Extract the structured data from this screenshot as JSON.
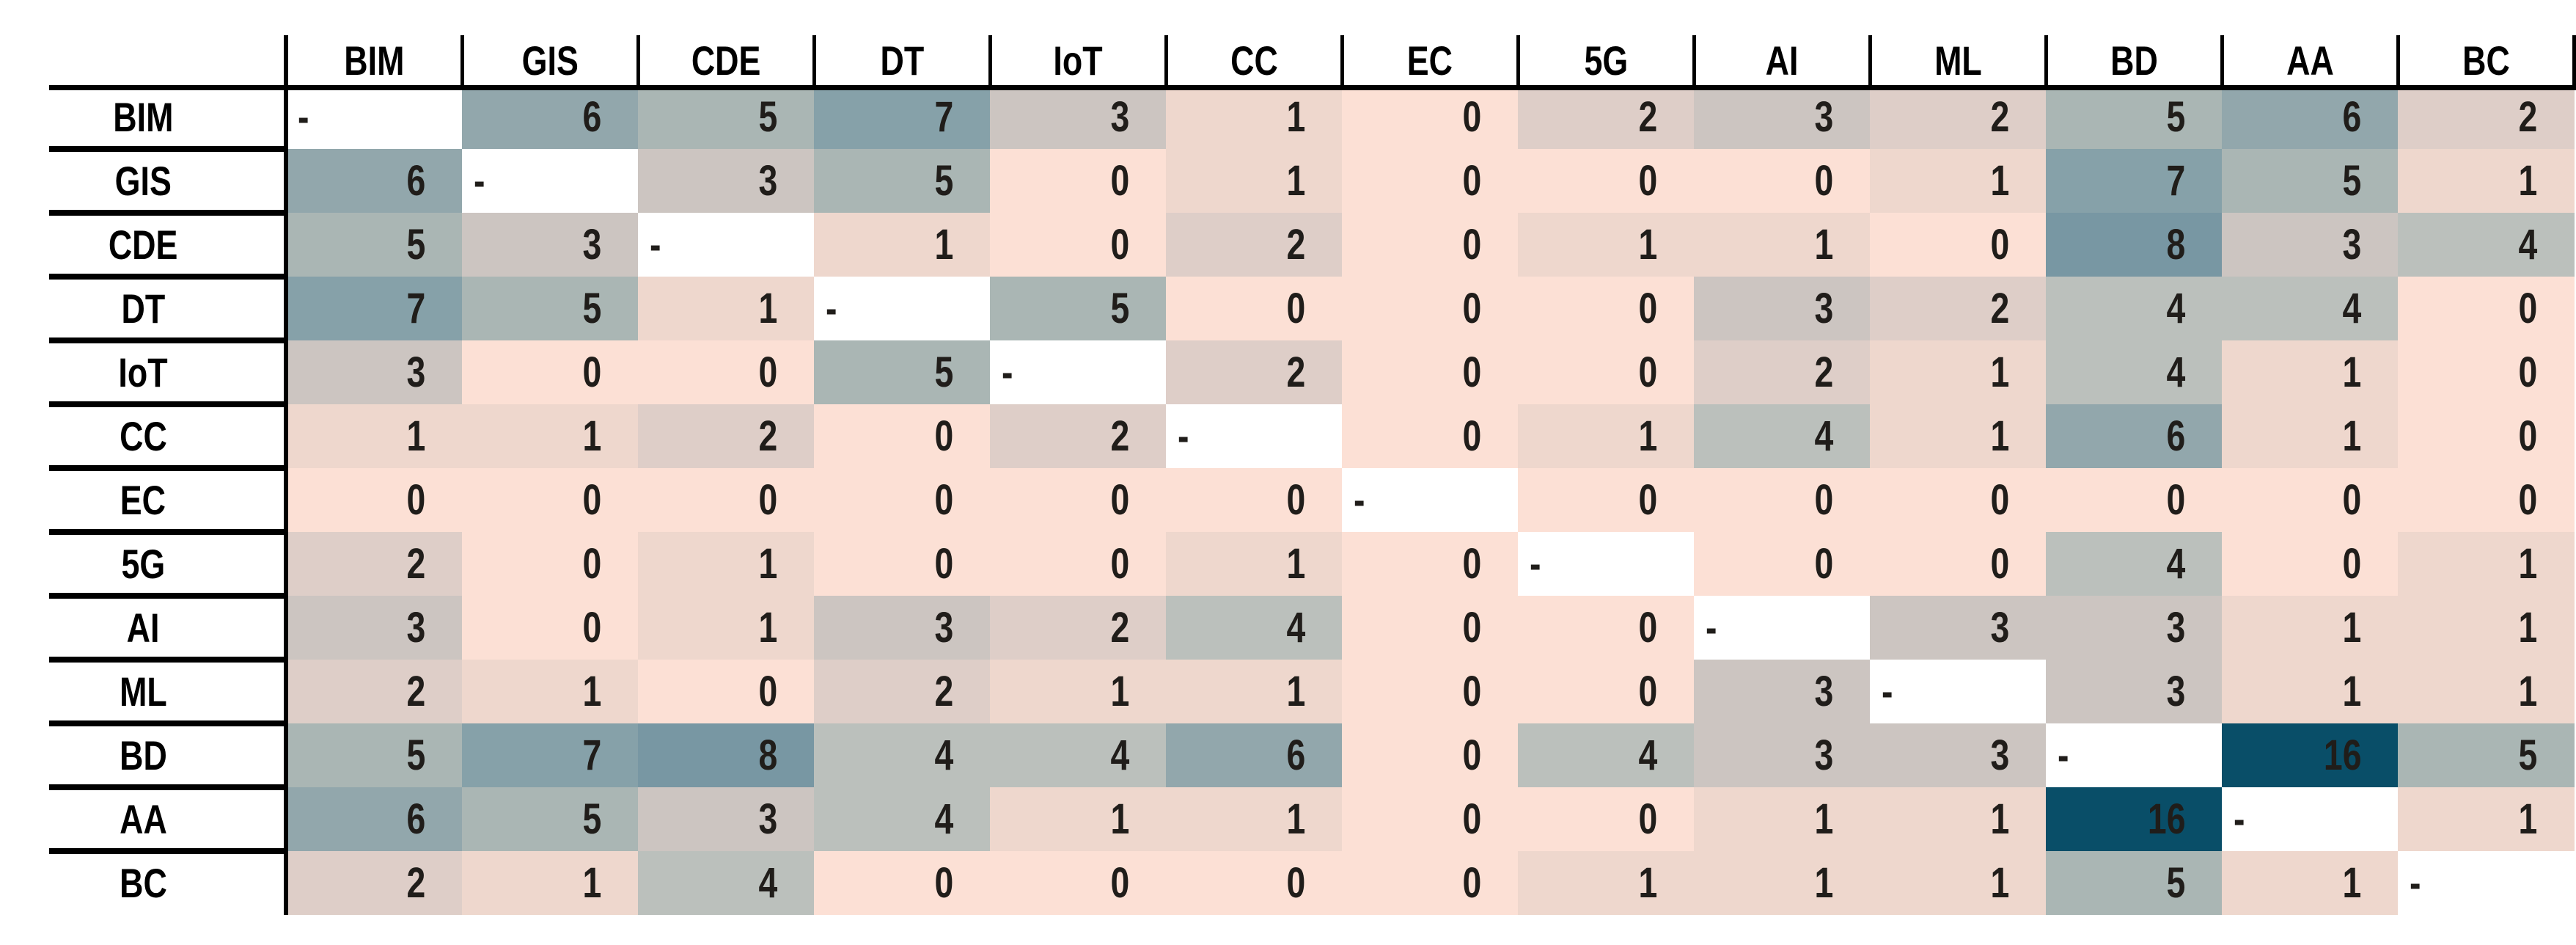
{
  "chart_data": {
    "type": "heatmap",
    "description": "Symmetric co-occurrence matrix of technology acronyms",
    "labels": [
      "BIM",
      "GIS",
      "CDE",
      "DT",
      "IoT",
      "CC",
      "EC",
      "5G",
      "AI",
      "ML",
      "BD",
      "AA",
      "BC"
    ],
    "matrix": [
      [
        null,
        6,
        5,
        7,
        3,
        1,
        0,
        2,
        3,
        2,
        5,
        6,
        2
      ],
      [
        6,
        null,
        3,
        5,
        0,
        1,
        0,
        0,
        0,
        1,
        7,
        5,
        1
      ],
      [
        5,
        3,
        null,
        1,
        0,
        2,
        0,
        1,
        1,
        0,
        8,
        3,
        4
      ],
      [
        7,
        5,
        1,
        null,
        5,
        0,
        0,
        0,
        3,
        2,
        4,
        4,
        0
      ],
      [
        3,
        0,
        0,
        5,
        null,
        2,
        0,
        0,
        2,
        1,
        4,
        1,
        0
      ],
      [
        1,
        1,
        2,
        0,
        2,
        null,
        0,
        1,
        4,
        1,
        6,
        1,
        0
      ],
      [
        0,
        0,
        0,
        0,
        0,
        0,
        null,
        0,
        0,
        0,
        0,
        0,
        0
      ],
      [
        2,
        0,
        1,
        0,
        0,
        1,
        0,
        null,
        0,
        0,
        4,
        0,
        1
      ],
      [
        3,
        0,
        1,
        3,
        2,
        4,
        0,
        0,
        null,
        3,
        3,
        1,
        1
      ],
      [
        2,
        1,
        0,
        2,
        1,
        1,
        0,
        0,
        3,
        null,
        3,
        1,
        1
      ],
      [
        5,
        7,
        8,
        4,
        4,
        6,
        0,
        4,
        3,
        3,
        null,
        16,
        5
      ],
      [
        6,
        5,
        3,
        4,
        1,
        1,
        0,
        0,
        1,
        1,
        16,
        null,
        1
      ],
      [
        2,
        1,
        4,
        0,
        0,
        0,
        0,
        1,
        1,
        1,
        5,
        1,
        null
      ]
    ],
    "diagonal_char": "-",
    "diagonal_color": "#FFFFFF",
    "value_colors": {
      "0": "#FCE0D5",
      "1": "#EED7CD",
      "2": "#DECEC8",
      "3": "#CCC5C1",
      "4": "#BBC0BC",
      "5": "#AAB6B4",
      "6": "#92A7AC",
      "7": "#86A1A9",
      "8": "#7897A3",
      "16": "#094E68"
    },
    "value_range": [
      0,
      16
    ],
    "grid": "off",
    "legend": "none",
    "text_color": "#201D1A",
    "line_color": "#000000"
  }
}
